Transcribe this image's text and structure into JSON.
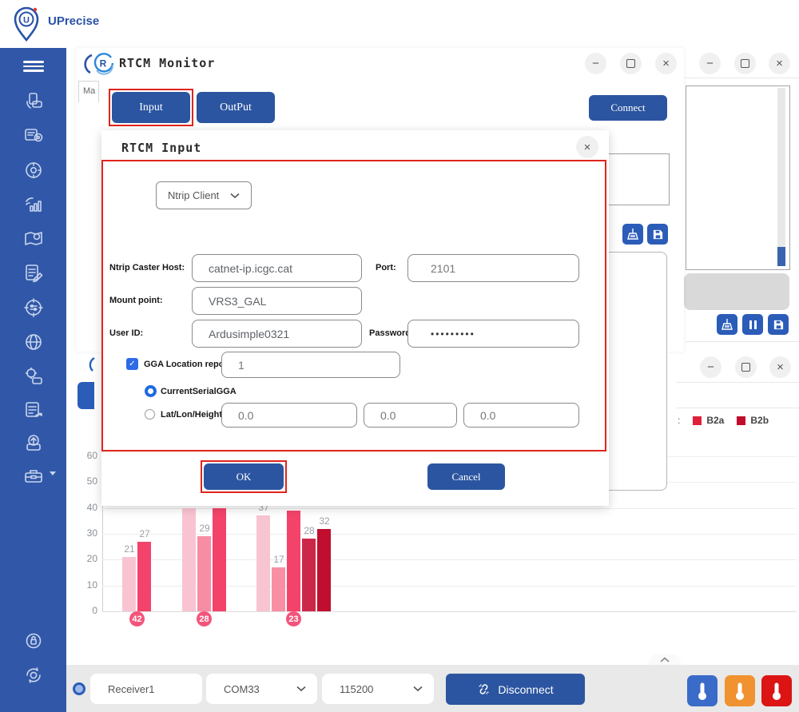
{
  "header": {
    "brand": "UPrecise"
  },
  "sidebar": {
    "icons": [
      "menu",
      "receiver-connect",
      "message-location",
      "satellite-tracking",
      "signal-strength",
      "map-tracking",
      "log-edit",
      "config-target",
      "network-globe",
      "device-settings",
      "data-export",
      "firmware-upload",
      "toolbox",
      "security",
      "settings-sync"
    ]
  },
  "window_controls": {
    "minimize": "−",
    "close": "×"
  },
  "icons": {
    "check_glyph": "✓"
  },
  "monitor_window": {
    "title": "RTCM Monitor",
    "partial_tab": "Ma",
    "input_button": "Input",
    "output_button": "OutPut",
    "connect_button": "Connect"
  },
  "dialog": {
    "title": "RTCM Input",
    "protocol": "Ntrip Client",
    "host_label": "Ntrip Caster Host:",
    "host_value": "catnet-ip.icgc.cat",
    "port_label": "Port:",
    "port_value": "2101",
    "mount_label": "Mount point:",
    "mount_value": "VRS3_GAL",
    "user_label": "User ID:",
    "user_value": "Ardusimple0321",
    "password_label": "Password:",
    "password_value": "•••••••••",
    "gga_label": "GGA Location reporting:",
    "gga_value": "1",
    "gga_checked": true,
    "radio_current_label": "CurrentSerialGGA",
    "radio_latlon_label": "Lat/Lon/Height",
    "lat_value": "0.0",
    "lon_value": "0.0",
    "height_value": "0.0",
    "ok_button": "OK",
    "cancel_button": "Cancel"
  },
  "chart_data": {
    "type": "bar",
    "title": "",
    "xlabel": "",
    "ylabel": "",
    "ylim": [
      0,
      60
    ],
    "yticks": [
      0,
      10,
      20,
      30,
      40,
      50,
      60
    ],
    "grid": true,
    "legend_position": "top-right",
    "legend_prefix": ":",
    "legend": [
      {
        "label": "B2a",
        "color": "#e02038"
      },
      {
        "label": "B2b",
        "color": "#c00b2d"
      }
    ],
    "category_badge_color": "#f4547b",
    "groups": [
      {
        "category": "42",
        "bars": [
          {
            "value": 21,
            "color": "#f9c4d1"
          },
          {
            "value": 27,
            "color": "#f4436a"
          }
        ]
      },
      {
        "category": "28",
        "bars": [
          {
            "value": 40,
            "color": "#f9c4d1",
            "label_visible": false
          },
          {
            "value": 29,
            "color": "#f78da3"
          },
          {
            "value": 40,
            "color": "#f4436a",
            "label_visible": false
          }
        ]
      },
      {
        "category": "23",
        "bars": [
          {
            "value": 37,
            "color": "#f9c4d1"
          },
          {
            "value": 17,
            "color": "#f88fa5"
          },
          {
            "value": 39,
            "color": "#f4436a",
            "label_visible": false
          },
          {
            "value": 28,
            "color": "#cb2849"
          },
          {
            "value": 32,
            "color": "#c00e2f"
          }
        ]
      }
    ]
  },
  "bottom_bar": {
    "receiver_value": "Receiver1",
    "com_port_value": "COM33",
    "baud_value": "115200",
    "disconnect_button": "Disconnect"
  }
}
